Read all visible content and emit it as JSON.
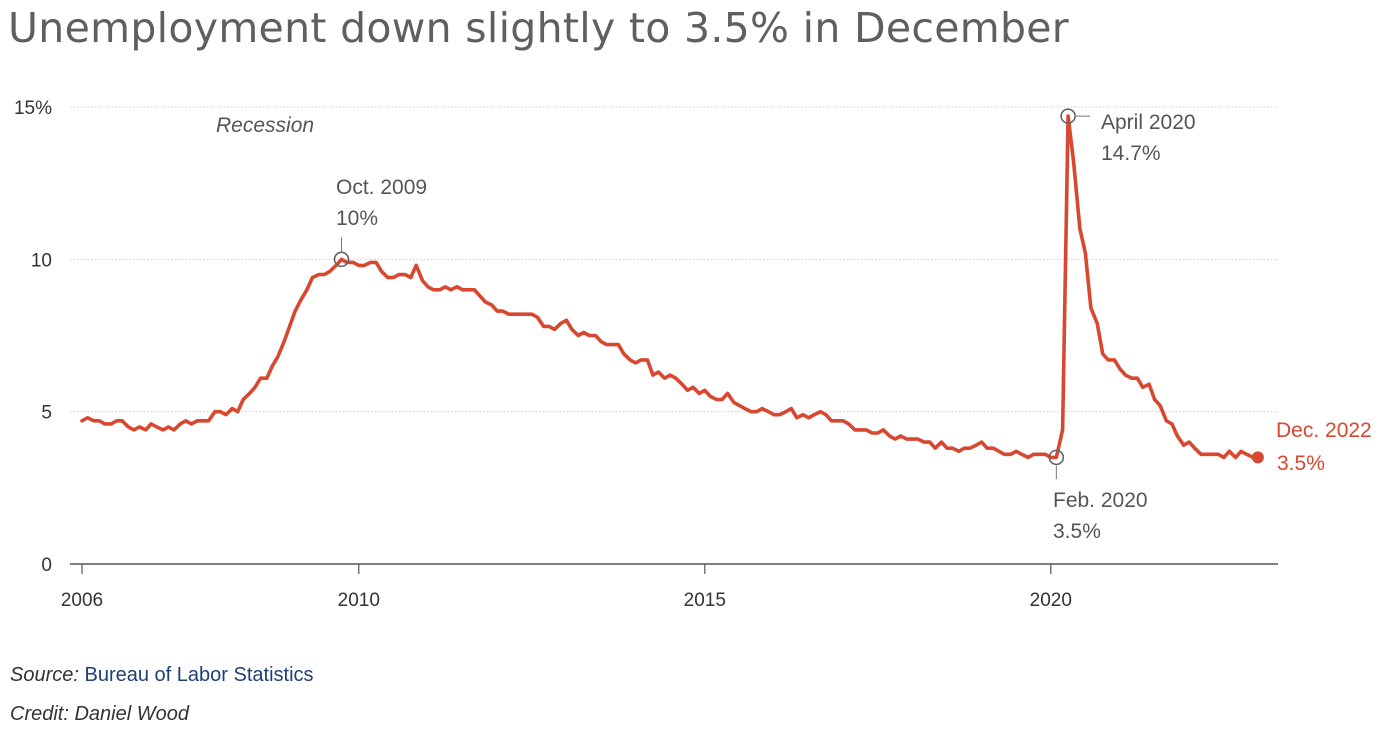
{
  "title": "Unemployment down slightly to 3.5% in December",
  "recession_label": "Recession",
  "footer": {
    "source_label": "Source:",
    "source_name": "Bureau of Labor Statistics",
    "credit": "Credit: Daniel Wood"
  },
  "colors": {
    "line": "#d8472f",
    "title": "#5f5f5f",
    "source_link": "#1f3f77"
  },
  "chart_data": {
    "type": "line",
    "title": "Unemployment down slightly to 3.5% in December",
    "xlabel": "",
    "ylabel": "",
    "x_unit": "year",
    "y_unit": "percent",
    "xlim": [
      2006.0,
      2023.15
    ],
    "ylim": [
      0,
      15
    ],
    "y_ticks": [
      0,
      5,
      10,
      15
    ],
    "y_tick_labels": [
      "0",
      "5",
      "10",
      "15%"
    ],
    "x_ticks": [
      2006,
      2010,
      2015,
      2020
    ],
    "x_tick_labels": [
      "2006",
      "2010",
      "2015",
      "2020"
    ],
    "grid": "horizontal",
    "series": [
      {
        "x": [
          2006.0,
          2006.08,
          2006.17,
          2006.25,
          2006.33,
          2006.42,
          2006.5,
          2006.58,
          2006.67,
          2006.75,
          2006.83,
          2006.92,
          2007.0,
          2007.08,
          2007.17,
          2007.25,
          2007.33,
          2007.42,
          2007.5,
          2007.58,
          2007.67,
          2007.75,
          2007.83,
          2007.92,
          2008.0,
          2008.08,
          2008.17,
          2008.25,
          2008.33,
          2008.42,
          2008.5,
          2008.58,
          2008.67,
          2008.75,
          2008.83,
          2008.92,
          2009.0,
          2009.08,
          2009.17,
          2009.25,
          2009.33,
          2009.42,
          2009.5,
          2009.58,
          2009.67,
          2009.75,
          2009.83,
          2009.92,
          2010.0,
          2010.08,
          2010.17,
          2010.25,
          2010.33,
          2010.42,
          2010.5,
          2010.58,
          2010.67,
          2010.75,
          2010.83,
          2010.92,
          2011.0,
          2011.08,
          2011.17,
          2011.25,
          2011.33,
          2011.42,
          2011.5,
          2011.58,
          2011.67,
          2011.75,
          2011.83,
          2011.92,
          2012.0,
          2012.08,
          2012.17,
          2012.25,
          2012.33,
          2012.42,
          2012.5,
          2012.58,
          2012.67,
          2012.75,
          2012.83,
          2012.92,
          2013.0,
          2013.08,
          2013.17,
          2013.25,
          2013.33,
          2013.42,
          2013.5,
          2013.58,
          2013.67,
          2013.75,
          2013.83,
          2013.92,
          2014.0,
          2014.08,
          2014.17,
          2014.25,
          2014.33,
          2014.42,
          2014.5,
          2014.58,
          2014.67,
          2014.75,
          2014.83,
          2014.92,
          2015.0,
          2015.08,
          2015.17,
          2015.25,
          2015.33,
          2015.42,
          2015.5,
          2015.58,
          2015.67,
          2015.75,
          2015.83,
          2015.92,
          2016.0,
          2016.08,
          2016.17,
          2016.25,
          2016.33,
          2016.42,
          2016.5,
          2016.58,
          2016.67,
          2016.75,
          2016.83,
          2016.92,
          2017.0,
          2017.08,
          2017.17,
          2017.25,
          2017.33,
          2017.42,
          2017.5,
          2017.58,
          2017.67,
          2017.75,
          2017.83,
          2017.92,
          2018.0,
          2018.08,
          2018.17,
          2018.25,
          2018.33,
          2018.42,
          2018.5,
          2018.58,
          2018.67,
          2018.75,
          2018.83,
          2018.92,
          2019.0,
          2019.08,
          2019.17,
          2019.25,
          2019.33,
          2019.42,
          2019.5,
          2019.58,
          2019.67,
          2019.75,
          2019.83,
          2019.92,
          2020.0,
          2020.08,
          2020.17,
          2020.25,
          2020.33,
          2020.42,
          2020.5,
          2020.58,
          2020.67,
          2020.75,
          2020.83,
          2020.92,
          2021.0,
          2021.08,
          2021.17,
          2021.25,
          2021.33,
          2021.42,
          2021.5,
          2021.58,
          2021.67,
          2021.75,
          2021.83,
          2021.92,
          2022.0,
          2022.08,
          2022.17,
          2022.25,
          2022.33,
          2022.42,
          2022.5,
          2022.58,
          2022.67,
          2022.75,
          2022.83,
          2022.92
        ],
        "y": [
          4.7,
          4.8,
          4.7,
          4.7,
          4.6,
          4.6,
          4.7,
          4.7,
          4.5,
          4.4,
          4.5,
          4.4,
          4.6,
          4.5,
          4.4,
          4.5,
          4.4,
          4.6,
          4.7,
          4.6,
          4.7,
          4.7,
          4.7,
          5.0,
          5.0,
          4.9,
          5.1,
          5.0,
          5.4,
          5.6,
          5.8,
          6.1,
          6.1,
          6.5,
          6.8,
          7.3,
          7.8,
          8.3,
          8.7,
          9.0,
          9.4,
          9.5,
          9.5,
          9.6,
          9.8,
          10.0,
          9.9,
          9.9,
          9.8,
          9.8,
          9.9,
          9.9,
          9.6,
          9.4,
          9.4,
          9.5,
          9.5,
          9.4,
          9.8,
          9.3,
          9.1,
          9.0,
          9.0,
          9.1,
          9.0,
          9.1,
          9.0,
          9.0,
          9.0,
          8.8,
          8.6,
          8.5,
          8.3,
          8.3,
          8.2,
          8.2,
          8.2,
          8.2,
          8.2,
          8.1,
          7.8,
          7.8,
          7.7,
          7.9,
          8.0,
          7.7,
          7.5,
          7.6,
          7.5,
          7.5,
          7.3,
          7.2,
          7.2,
          7.2,
          6.9,
          6.7,
          6.6,
          6.7,
          6.7,
          6.2,
          6.3,
          6.1,
          6.2,
          6.1,
          5.9,
          5.7,
          5.8,
          5.6,
          5.7,
          5.5,
          5.4,
          5.4,
          5.6,
          5.3,
          5.2,
          5.1,
          5.0,
          5.0,
          5.1,
          5.0,
          4.9,
          4.9,
          5.0,
          5.1,
          4.8,
          4.9,
          4.8,
          4.9,
          5.0,
          4.9,
          4.7,
          4.7,
          4.7,
          4.6,
          4.4,
          4.4,
          4.4,
          4.3,
          4.3,
          4.4,
          4.2,
          4.1,
          4.2,
          4.1,
          4.1,
          4.1,
          4.0,
          4.0,
          3.8,
          4.0,
          3.8,
          3.8,
          3.7,
          3.8,
          3.8,
          3.9,
          4.0,
          3.8,
          3.8,
          3.7,
          3.6,
          3.6,
          3.7,
          3.6,
          3.5,
          3.6,
          3.6,
          3.6,
          3.5,
          3.5,
          4.4,
          14.7,
          13.2,
          11.0,
          10.2,
          8.4,
          7.9,
          6.9,
          6.7,
          6.7,
          6.4,
          6.2,
          6.1,
          6.1,
          5.8,
          5.9,
          5.4,
          5.2,
          4.7,
          4.6,
          4.2,
          3.9,
          4.0,
          3.8,
          3.6,
          3.6,
          3.6,
          3.6,
          3.5,
          3.7,
          3.5,
          3.7,
          3.6,
          3.5
        ]
      }
    ],
    "annotations": [
      {
        "id": "oct2009",
        "x": 2009.75,
        "y": 10.0,
        "label_line1": "Oct. 2009",
        "label_line2": "10%"
      },
      {
        "id": "apr2020",
        "x": 2020.25,
        "y": 14.7,
        "label_line1": "April 2020",
        "label_line2": "14.7%"
      },
      {
        "id": "feb2020",
        "x": 2020.08,
        "y": 3.5,
        "label_line1": "Feb. 2020",
        "label_line2": "3.5%"
      },
      {
        "id": "dec2022",
        "x": 2022.92,
        "y": 3.5,
        "label_line1": "Dec. 2022",
        "label_line2": "3.5%"
      }
    ]
  }
}
